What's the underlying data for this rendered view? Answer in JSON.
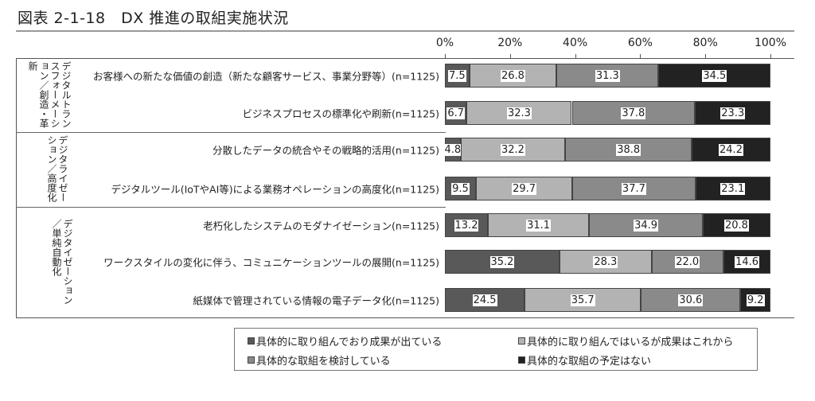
{
  "chart_data": {
    "type": "bar",
    "orientation": "horizontal-stacked",
    "title": "図表 2-1-18　DX 推進の取組実施状況",
    "xlim": [
      0,
      100
    ],
    "ticks": [
      "0%",
      "20%",
      "40%",
      "60%",
      "80%",
      "100%"
    ],
    "groups": [
      {
        "label": "デジタルトランスフォーメーション／創造・革新",
        "rows": [
          0,
          1
        ]
      },
      {
        "label": "デジタライゼーション／高度化",
        "rows": [
          2,
          3
        ]
      },
      {
        "label": "デジタイゼーション／単純自動化",
        "rows": [
          4,
          5,
          6
        ]
      }
    ],
    "categories": [
      "お客様への新たな価値の創造（新たな顧客サービス、事業分野等）(n=1125)",
      "ビジネスプロセスの標準化や刷新(n=1125)",
      "分散したデータの統合やその戦略的活用(n=1125)",
      "デジタルツール(IoTやAI等)による業務オペレーションの高度化(n=1125)",
      "老朽化したシステムのモダナイゼーション(n=1125)",
      "ワークスタイルの変化に伴う、コミュニケーションツールの展開(n=1125)",
      "紙媒体で管理されている情報の電子データ化(n=1125)"
    ],
    "series": [
      {
        "name": "具体的に取り組んでおり成果が出ている",
        "color": "#595959",
        "values": [
          7.5,
          6.7,
          4.8,
          9.5,
          13.2,
          35.2,
          24.5
        ]
      },
      {
        "name": "具体的に取り組んではいるが成果はこれから",
        "color": "#b3b3b3",
        "values": [
          26.8,
          32.3,
          32.2,
          29.7,
          31.1,
          28.3,
          35.7
        ]
      },
      {
        "name": "具体的な取組を検討している",
        "color": "#8a8a8a",
        "values": [
          31.3,
          37.8,
          38.8,
          37.7,
          34.9,
          22.0,
          30.6
        ]
      },
      {
        "name": "具体的な取組の予定はない",
        "color": "#222222",
        "values": [
          34.5,
          23.3,
          24.2,
          23.1,
          20.8,
          14.6,
          9.2
        ]
      }
    ]
  }
}
